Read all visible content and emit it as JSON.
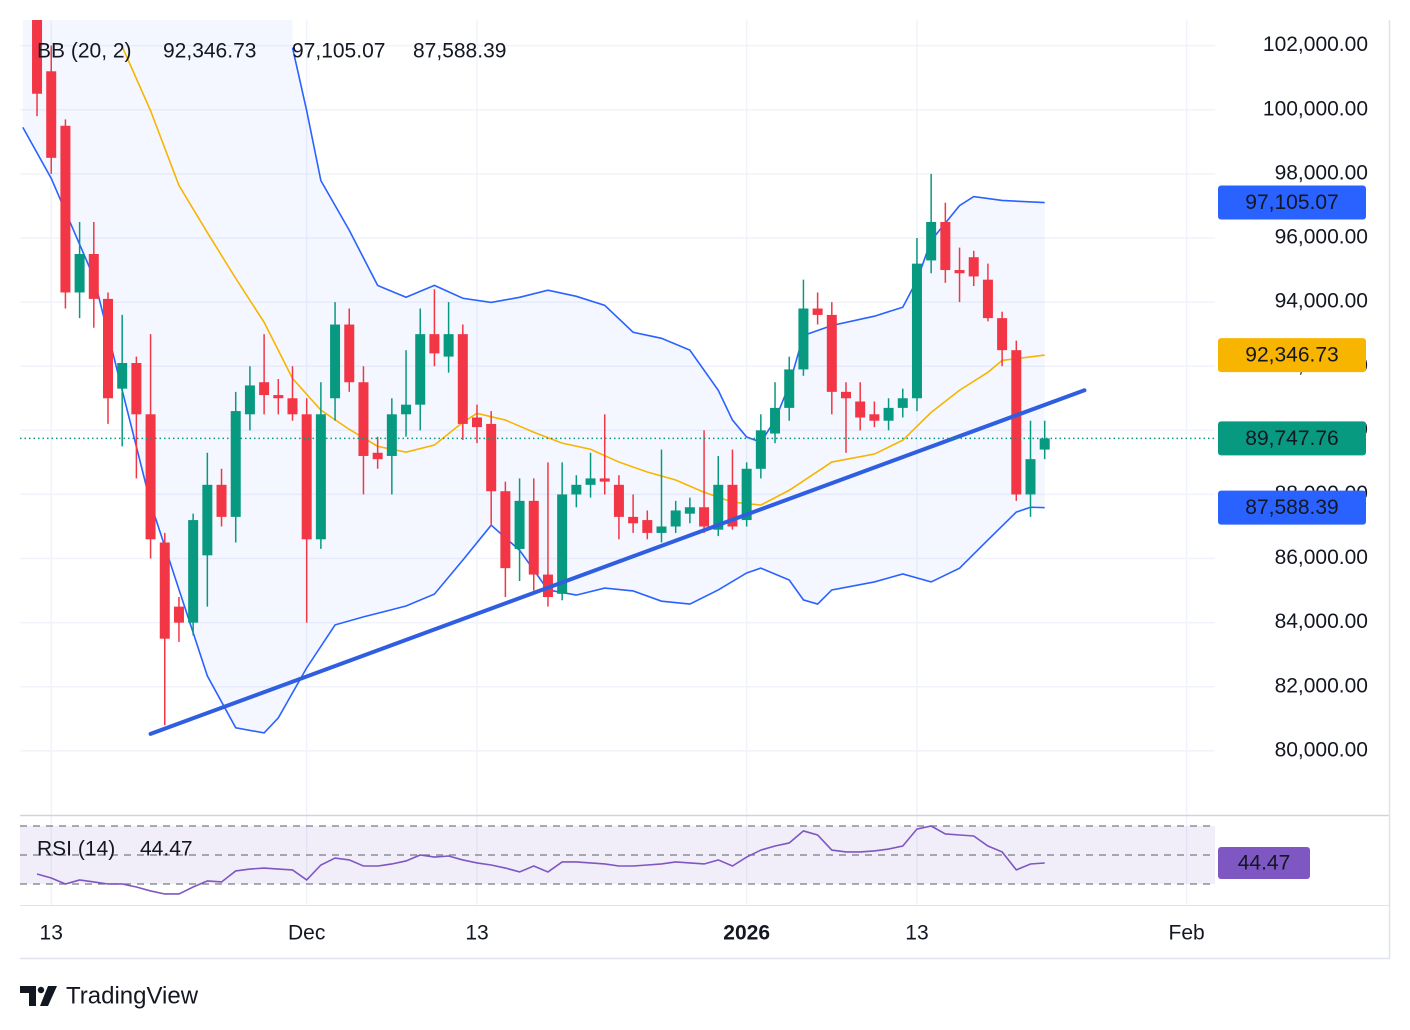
{
  "chart_data": {
    "type": "candlestick",
    "xlim": [
      -1.2,
      83
    ],
    "xticks": [
      {
        "value": 1,
        "label": "13"
      },
      {
        "value": 19,
        "label": "Dec"
      },
      {
        "value": 31,
        "label": "13"
      },
      {
        "value": 50,
        "label": "2026"
      },
      {
        "value": 62,
        "label": "13"
      },
      {
        "value": 81,
        "label": "Feb"
      }
    ],
    "ylim": [
      78000,
      102800
    ],
    "yticks": [
      {
        "value": 80000,
        "label": "80,000.00"
      },
      {
        "value": 82000,
        "label": "82,000.00"
      },
      {
        "value": 84000,
        "label": "84,000.00"
      },
      {
        "value": 86000,
        "label": "86,000.00"
      },
      {
        "value": 88000,
        "label": "88,000.00"
      },
      {
        "value": 90000,
        "label": "90,000.00"
      },
      {
        "value": 92000,
        "label": "92,000.00"
      },
      {
        "value": 94000,
        "label": "94,000.00"
      },
      {
        "value": 96000,
        "label": "96,000.00"
      },
      {
        "value": 98000,
        "label": "98,000.00"
      },
      {
        "value": 100000,
        "label": "100,000.00"
      },
      {
        "value": 102000,
        "label": "102,000.00"
      }
    ],
    "grid": true,
    "up_color": "#089981",
    "down_color": "#f23645",
    "open": [
      103000,
      101200,
      99500,
      94300,
      95500,
      94100,
      91300,
      92100,
      90500,
      86500,
      84500,
      84000,
      86100,
      88300,
      87300,
      90500,
      91500,
      91100,
      91000,
      90500,
      86600,
      91000,
      93300,
      91500,
      89300,
      89200,
      90500,
      90800,
      93000,
      92300,
      93000,
      90400,
      90200,
      88100,
      86300,
      87800,
      85500,
      84900,
      88000,
      88300,
      88500,
      88300,
      87300,
      87200,
      86800,
      87000,
      87400,
      87600,
      86900,
      88300,
      87200,
      88800,
      89900,
      90700,
      91900,
      93800,
      93600,
      91200,
      90900,
      90500,
      90300,
      90700,
      91000,
      95300,
      96500,
      95000,
      95400,
      94700,
      93500,
      92500,
      88000,
      89400
    ],
    "high": [
      103500,
      102000,
      99700,
      96500,
      96500,
      94300,
      93600,
      92300,
      93000,
      86800,
      84800,
      87400,
      89300,
      88800,
      91200,
      92000,
      93000,
      91600,
      92000,
      91000,
      91500,
      94000,
      93800,
      92000,
      89800,
      91000,
      92500,
      93800,
      94400,
      94000,
      93300,
      90800,
      90600,
      88400,
      88500,
      88500,
      89000,
      89000,
      88600,
      89300,
      90500,
      88600,
      88000,
      87500,
      89400,
      87800,
      87900,
      90000,
      89200,
      89400,
      89000,
      90500,
      91500,
      92300,
      94700,
      94300,
      94000,
      91500,
      91500,
      90900,
      91000,
      91300,
      96000,
      98000,
      97100,
      95700,
      95600,
      95200,
      93700,
      92800,
      90300,
      90300
    ],
    "low": [
      99800,
      98000,
      93800,
      93500,
      93200,
      90200,
      89500,
      88500,
      86000,
      80800,
      83400,
      83600,
      84500,
      87000,
      86500,
      90000,
      90500,
      90500,
      90300,
      84000,
      86300,
      90300,
      91200,
      88000,
      88800,
      88000,
      89800,
      90000,
      92000,
      91800,
      89700,
      89600,
      87000,
      84800,
      85300,
      85000,
      84500,
      84700,
      87600,
      87900,
      88000,
      86600,
      86800,
      86600,
      86500,
      86800,
      87100,
      86800,
      86700,
      86900,
      87000,
      88500,
      89600,
      90300,
      91700,
      93300,
      90500,
      89300,
      90000,
      90100,
      90000,
      90400,
      90600,
      94900,
      94600,
      94000,
      94500,
      93400,
      92000,
      87800,
      87300,
      89100
    ],
    "close": [
      100500,
      98500,
      94300,
      95500,
      94100,
      91000,
      92100,
      90500,
      86600,
      83500,
      84000,
      87200,
      88300,
      87300,
      90600,
      91400,
      91100,
      91000,
      90500,
      86600,
      90500,
      93300,
      91500,
      89200,
      89100,
      90500,
      90800,
      93000,
      92400,
      93000,
      90200,
      90100,
      88100,
      85700,
      87800,
      85500,
      84800,
      88000,
      88300,
      88500,
      88400,
      87300,
      87100,
      86800,
      87000,
      87500,
      87600,
      87000,
      88300,
      87000,
      88800,
      90000,
      90700,
      91900,
      93800,
      93600,
      91200,
      91000,
      90400,
      90300,
      90700,
      91000,
      95200,
      96500,
      95000,
      94900,
      94800,
      93500,
      92500,
      88000,
      89100,
      89747.76
    ],
    "last_price": 89747.76,
    "last_price_label": "89,747.76",
    "last_price_color": "#089981",
    "indicator": {
      "label": "BB (20, 2)",
      "fill": "#2962ff",
      "lines": [
        {
          "color": "#f7b500",
          "box_text": "#131722",
          "value_label": "92,346.73",
          "x": [
            6,
            8,
            10,
            12,
            14,
            16,
            18,
            20,
            22,
            24,
            26,
            28,
            30,
            31,
            33,
            35,
            37,
            39,
            41,
            43,
            45,
            47,
            49,
            51,
            53,
            56,
            59,
            61,
            63,
            65,
            67,
            68,
            71
          ],
          "values": [
            101970,
            99970,
            97640,
            96170,
            94740,
            93370,
            91620,
            90630,
            90030,
            89500,
            89320,
            89540,
            90250,
            90530,
            90320,
            89940,
            89600,
            89410,
            89010,
            88700,
            88450,
            88070,
            87760,
            87670,
            88130,
            89010,
            89260,
            89690,
            90560,
            91250,
            91810,
            92180,
            92346.73
          ]
        },
        {
          "color": "#2962ff",
          "box_text": "#ffffff",
          "value_label": "97,105.07",
          "x": [
            18,
            19,
            20,
            22,
            24,
            26,
            28,
            30,
            32,
            34,
            36,
            38,
            40,
            42,
            44,
            46,
            48,
            49,
            50,
            51,
            52,
            53,
            54,
            56,
            59,
            61,
            62,
            63,
            65,
            66,
            68,
            71
          ],
          "values": [
            101940,
            99970,
            97790,
            96240,
            94520,
            94150,
            94520,
            94120,
            93990,
            94150,
            94370,
            94180,
            93900,
            93060,
            92870,
            92500,
            91250,
            90320,
            89790,
            89630,
            90320,
            91410,
            92960,
            93270,
            93560,
            93840,
            94680,
            95920,
            97010,
            97290,
            97170,
            97105.07
          ]
        },
        {
          "color": "#2962ff",
          "box_text": "#ffffff",
          "value_label": "87,588.39",
          "x": [
            -1,
            1,
            4,
            8,
            12,
            14,
            16,
            17,
            19,
            21,
            23,
            26,
            28,
            30,
            32,
            34,
            36,
            38,
            40,
            42,
            44,
            46,
            48,
            50,
            51,
            53,
            54,
            55,
            56,
            59,
            61,
            63,
            65,
            67,
            69,
            70,
            71
          ],
          "values": [
            99450,
            97860,
            94770,
            87730,
            82340,
            80720,
            80560,
            81030,
            82590,
            83930,
            84180,
            84520,
            84890,
            85950,
            87040,
            86260,
            85020,
            84860,
            85080,
            84990,
            84670,
            84580,
            85020,
            85550,
            85700,
            85330,
            84710,
            84580,
            85020,
            85270,
            85520,
            85270,
            85700,
            86580,
            87450,
            87600,
            87588.39
          ]
        }
      ]
    },
    "trendline": {
      "color": "#2f5fe0",
      "x": [
        8,
        73.8
      ],
      "values": [
        80530,
        91250
      ]
    },
    "rsi": {
      "label": "RSI (14)",
      "color": "#7e57c2",
      "ylim": [
        15.5,
        76.9
      ],
      "levels": [
        70,
        50,
        30
      ],
      "values": [
        36.9,
        34.1,
        30.0,
        32.8,
        31.4,
        30.0,
        30.0,
        27.9,
        25.2,
        23.1,
        23.1,
        27.9,
        32.1,
        31.4,
        39.0,
        40.3,
        41.0,
        40.3,
        39.7,
        32.8,
        43.1,
        47.9,
        46.6,
        42.4,
        42.4,
        43.8,
        45.9,
        50.0,
        48.6,
        49.3,
        46.6,
        44.5,
        43.1,
        41.0,
        38.3,
        42.4,
        38.3,
        45.2,
        45.2,
        44.5,
        43.8,
        42.4,
        42.4,
        43.1,
        43.8,
        45.2,
        44.5,
        43.8,
        46.6,
        42.4,
        48.6,
        53.4,
        56.2,
        58.3,
        66.6,
        63.8,
        53.4,
        52.1,
        52.1,
        52.8,
        54.1,
        56.2,
        67.9,
        70.0,
        64.5,
        63.8,
        63.1,
        56.2,
        52.1,
        39.7,
        43.8,
        44.47
      ],
      "value_label": "44.47"
    }
  },
  "footer": {
    "brand": "TradingView"
  }
}
